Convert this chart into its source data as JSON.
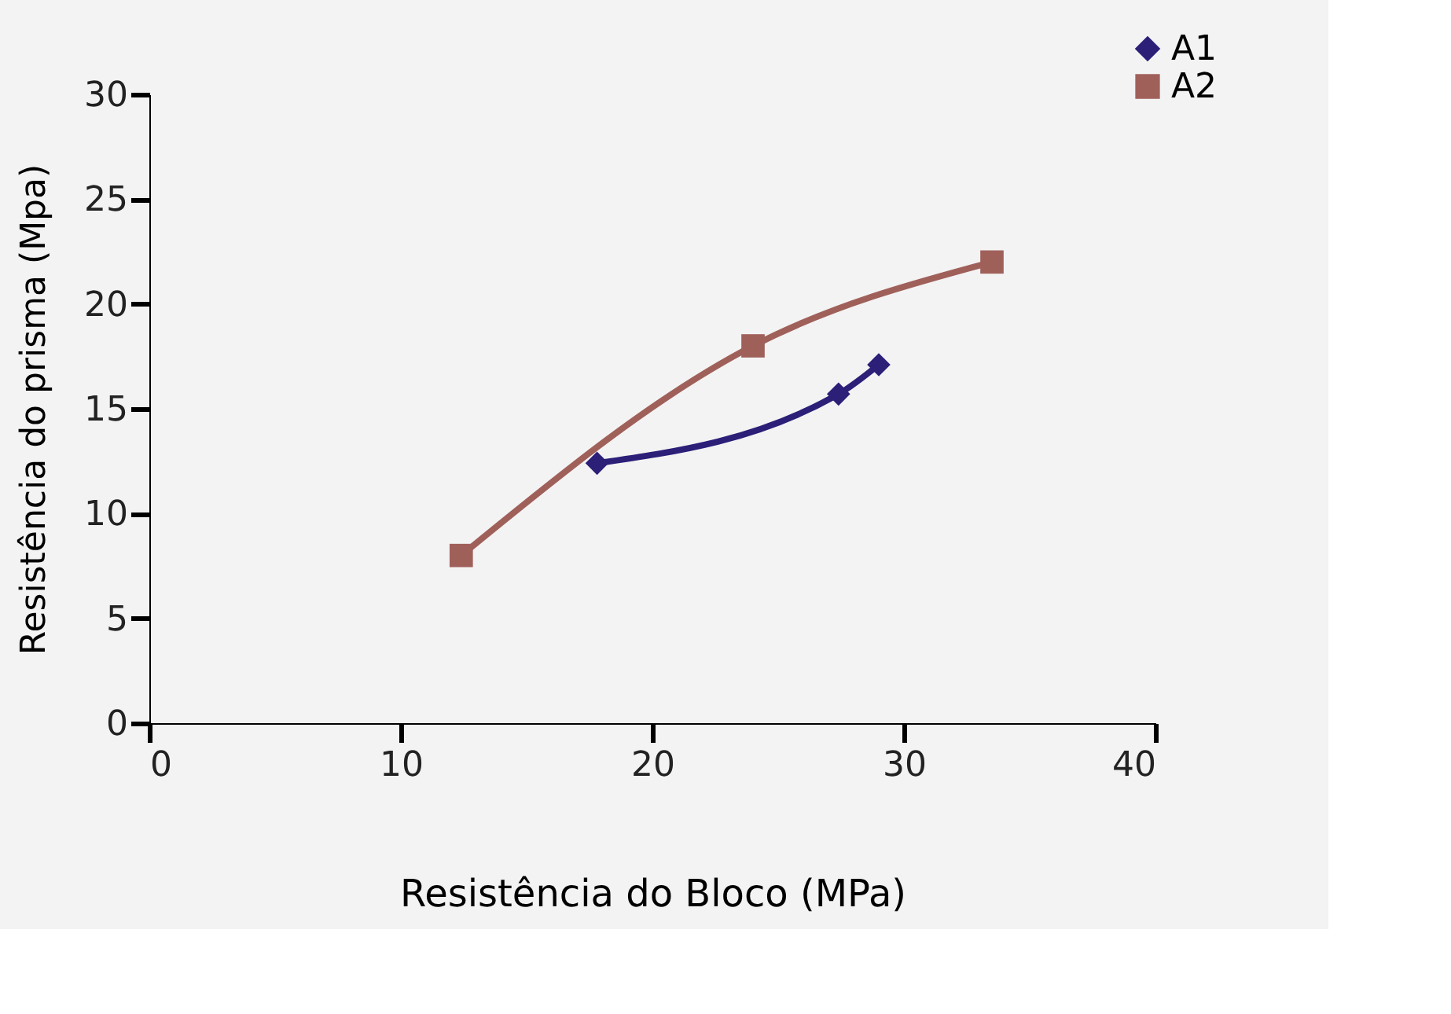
{
  "chart_data": {
    "type": "line",
    "xlabel": "Resistência do Bloco (MPa)",
    "ylabel": "Resistência do prisma (Mpa)",
    "xlim": [
      0,
      40
    ],
    "xticks": [
      0,
      10,
      20,
      30,
      40
    ],
    "ylim": [
      0,
      30
    ],
    "yticks": [
      0,
      5,
      10,
      15,
      20,
      25,
      30
    ],
    "grid": false,
    "legend": "top right",
    "series": [
      {
        "name": "A1",
        "color": "#2b1f78",
        "marker": "diamond",
        "x": [
          17.8,
          27.4,
          29.0
        ],
        "values": [
          12.4,
          15.7,
          17.1
        ]
      },
      {
        "name": "A2",
        "color": "#a0605a",
        "marker": "square",
        "x": [
          12.4,
          24.0,
          33.5
        ],
        "values": [
          8.0,
          18.0,
          22.0
        ]
      }
    ]
  }
}
